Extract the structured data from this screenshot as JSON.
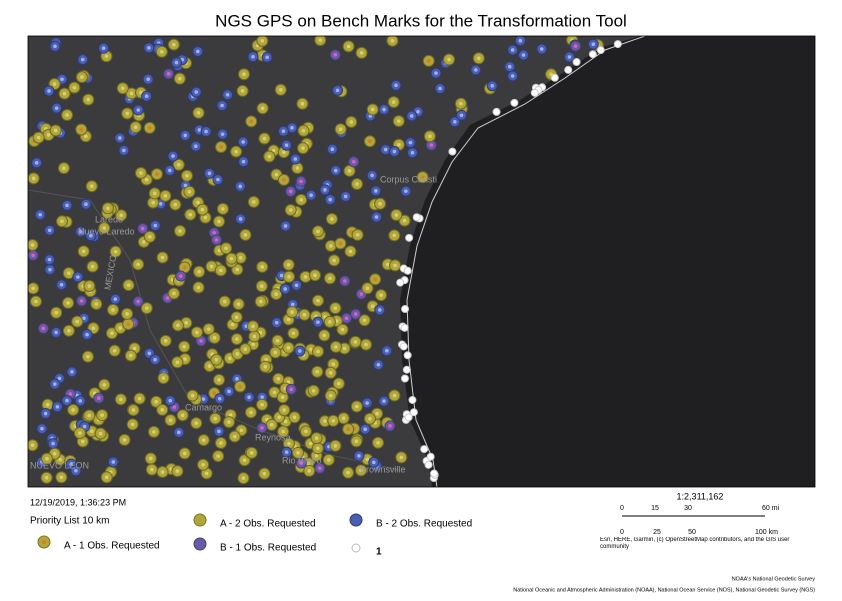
{
  "header": {
    "title": "NGS GPS on Bench Marks for the Transformation Tool"
  },
  "map": {
    "places": [
      "Laredo",
      "Nuevo Laredo",
      "Corpus Christi",
      "Camargo",
      "Reynosa",
      "Rio Bravo",
      "Brownsville",
      "NUEVO LEON",
      "MEXICO"
    ]
  },
  "footer": {
    "timestamp": "12/19/2019, 1:36:23 PM",
    "legend_title": "Priority List 10 km",
    "legend": [
      "A - 1 Obs. Requested",
      "A - 2 Obs. Requested",
      "B - 1 Obs. Requested",
      "B - 2 Obs. Requested",
      "1"
    ],
    "scale": "1:2,311,162",
    "miles": [
      "0",
      "15",
      "30",
      "60 mi"
    ],
    "km": [
      "0",
      "25",
      "50",
      "100 km"
    ],
    "attribution": "Esri, HERE, Garmin, (c) OpenStreetMap contributors, and the GIS user community",
    "credit_1": "NOAA's National Geodetic Survey",
    "credit_2": "National Oceanic and Atmospheric Administration (NOAA), National Ocean Service (NOS), National Geodetic Survey (NGS)"
  }
}
